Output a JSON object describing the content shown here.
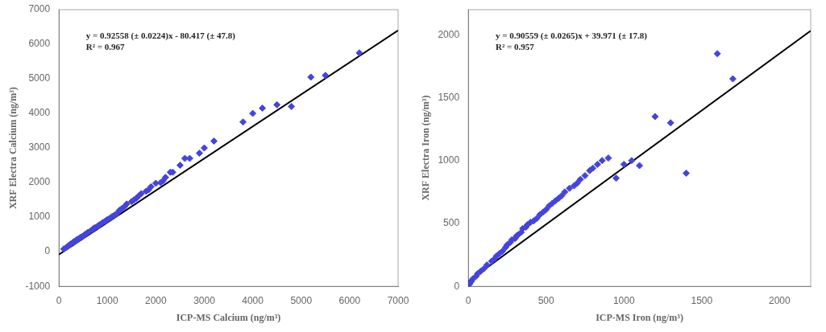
{
  "chart_data": [
    {
      "type": "scatter",
      "xlabel": "ICP-MS Calcium (ng/m³)",
      "ylabel": "XRF Electra Calcium (ng/m³)",
      "annotations": [
        "y = 0.92558 (± 0.0224)x - 80.417 (± 47.8)",
        "R² = 0.967"
      ],
      "xlim": [
        0,
        7000
      ],
      "ylim": [
        -1000,
        7000
      ],
      "xticks": [
        0,
        1000,
        2000,
        3000,
        4000,
        5000,
        6000,
        7000
      ],
      "yticks": [
        -1000,
        0,
        1000,
        2000,
        3000,
        4000,
        5000,
        6000,
        7000
      ],
      "grid": false,
      "series": [
        {
          "type": "scatter",
          "color": "#4444dd",
          "marker": "diamond",
          "x": [
            100,
            150,
            200,
            220,
            250,
            300,
            310,
            350,
            370,
            380,
            400,
            420,
            450,
            480,
            500,
            530,
            550,
            580,
            600,
            650,
            700,
            720,
            750,
            800,
            820,
            850,
            900,
            950,
            980,
            1000,
            1050,
            1100,
            1150,
            1200,
            1250,
            1300,
            1350,
            1400,
            1500,
            1550,
            1600,
            1650,
            1700,
            1800,
            1850,
            1900,
            2000,
            2100,
            2150,
            2200,
            2300,
            2350,
            2500,
            2600,
            2700,
            2900,
            3000,
            3200,
            3800,
            4000,
            4200,
            4500,
            4800,
            5200,
            5500,
            6200
          ],
          "values": [
            80,
            120,
            180,
            200,
            230,
            280,
            290,
            320,
            350,
            350,
            370,
            390,
            420,
            440,
            450,
            490,
            510,
            540,
            560,
            600,
            650,
            680,
            700,
            740,
            760,
            790,
            840,
            880,
            910,
            930,
            970,
            1020,
            1060,
            1110,
            1200,
            1250,
            1300,
            1380,
            1450,
            1500,
            1550,
            1620,
            1680,
            1750,
            1790,
            1880,
            1980,
            2000,
            2050,
            2150,
            2300,
            2300,
            2500,
            2700,
            2700,
            2850,
            3000,
            3200,
            3750,
            4000,
            4150,
            4250,
            4200,
            5050,
            5100,
            5750
          ]
        },
        {
          "type": "line",
          "color": "#000000",
          "line_style": "solid",
          "x": [
            0,
            7000
          ],
          "values": [
            -80.417,
            6398.643
          ]
        }
      ]
    },
    {
      "type": "scatter",
      "xlabel": "ICP-MS Iron (ng/m³)",
      "ylabel": "XRF Electra Iron (ng/m³)",
      "annotations": [
        "y = 0.90559 (± 0.0265)x + 39.971 (± 17.8)",
        "R² = 0.957"
      ],
      "xlim": [
        0,
        2200
      ],
      "ylim": [
        0,
        2200
      ],
      "xticks": [
        0,
        500,
        1000,
        1500,
        2000
      ],
      "yticks": [
        0,
        500,
        1000,
        1500,
        2000
      ],
      "grid": false,
      "series": [
        {
          "type": "scatter",
          "color": "#4444dd",
          "marker": "diamond",
          "x": [
            10,
            20,
            30,
            50,
            60,
            80,
            100,
            120,
            150,
            170,
            180,
            200,
            220,
            240,
            250,
            270,
            280,
            300,
            310,
            320,
            340,
            350,
            370,
            380,
            400,
            420,
            440,
            460,
            480,
            500,
            520,
            540,
            560,
            580,
            600,
            620,
            650,
            680,
            700,
            720,
            750,
            780,
            800,
            830,
            860,
            900,
            950,
            1000,
            1050,
            1100,
            1200,
            1300,
            1400,
            1600,
            1700
          ],
          "values": [
            20,
            40,
            60,
            80,
            100,
            120,
            140,
            170,
            200,
            220,
            240,
            260,
            280,
            310,
            330,
            350,
            370,
            380,
            400,
            410,
            430,
            460,
            470,
            490,
            510,
            520,
            540,
            570,
            590,
            610,
            640,
            660,
            680,
            700,
            720,
            750,
            780,
            800,
            820,
            850,
            880,
            920,
            940,
            970,
            1000,
            1020,
            860,
            970,
            1000,
            960,
            1350,
            1300,
            900,
            1850,
            1650
          ]
        },
        {
          "type": "line",
          "color": "#000000",
          "line_style": "solid",
          "x": [
            0,
            2200
          ],
          "values": [
            39.971,
            2032.269
          ]
        }
      ]
    }
  ]
}
